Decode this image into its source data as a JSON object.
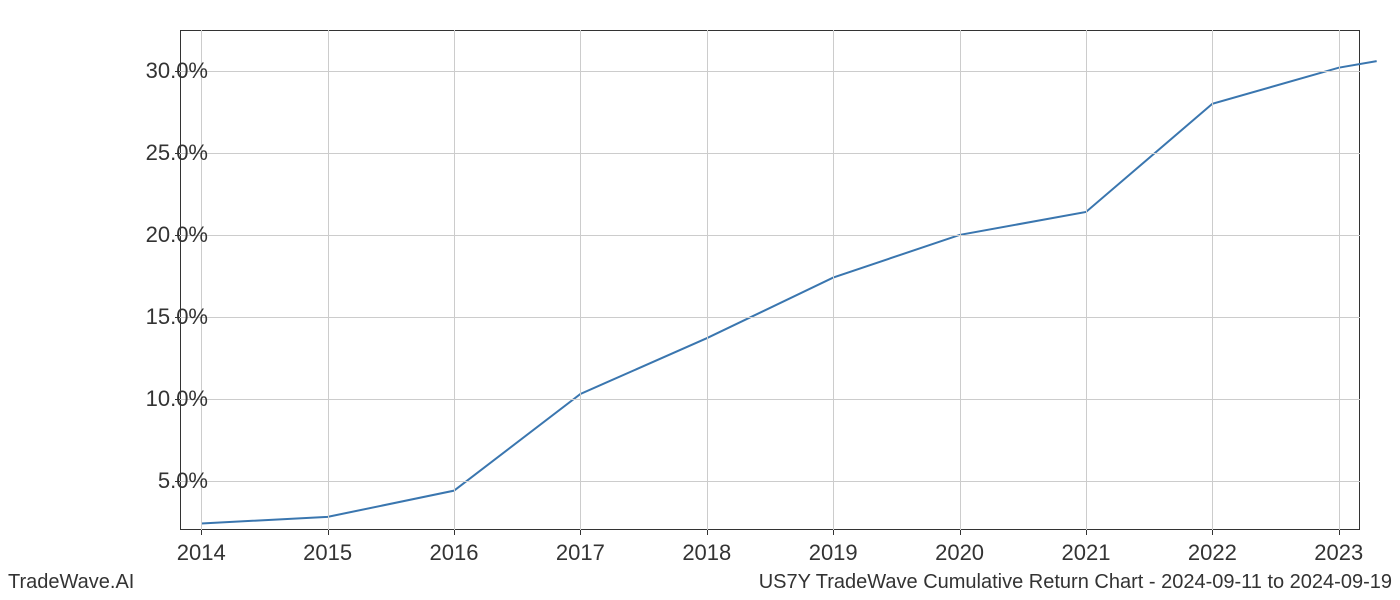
{
  "chart": {
    "type": "line",
    "background_color": "#ffffff",
    "grid_color": "#cccccc",
    "axis_color": "#333333",
    "line_color": "#3a76af",
    "line_width": 2,
    "tick_fontsize": 22,
    "footer_fontsize": 20,
    "text_color": "#333333",
    "x_categories": [
      "2014",
      "2015",
      "2016",
      "2017",
      "2018",
      "2019",
      "2020",
      "2021",
      "2022",
      "2023"
    ],
    "x_extra_point": "2023.3",
    "y_ticks": [
      5.0,
      10.0,
      15.0,
      20.0,
      25.0,
      30.0
    ],
    "y_tick_labels": [
      "5.0%",
      "10.0%",
      "15.0%",
      "20.0%",
      "25.0%",
      "30.0%"
    ],
    "ylim": [
      2.0,
      32.5
    ],
    "xlim_fraction": [
      0.018,
      0.982
    ],
    "values": [
      2.4,
      2.8,
      4.4,
      10.3,
      13.7,
      17.4,
      20.0,
      21.4,
      28.0,
      30.2,
      30.6
    ]
  },
  "footer": {
    "left": "TradeWave.AI",
    "right": "US7Y TradeWave Cumulative Return Chart - 2024-09-11 to 2024-09-19"
  }
}
